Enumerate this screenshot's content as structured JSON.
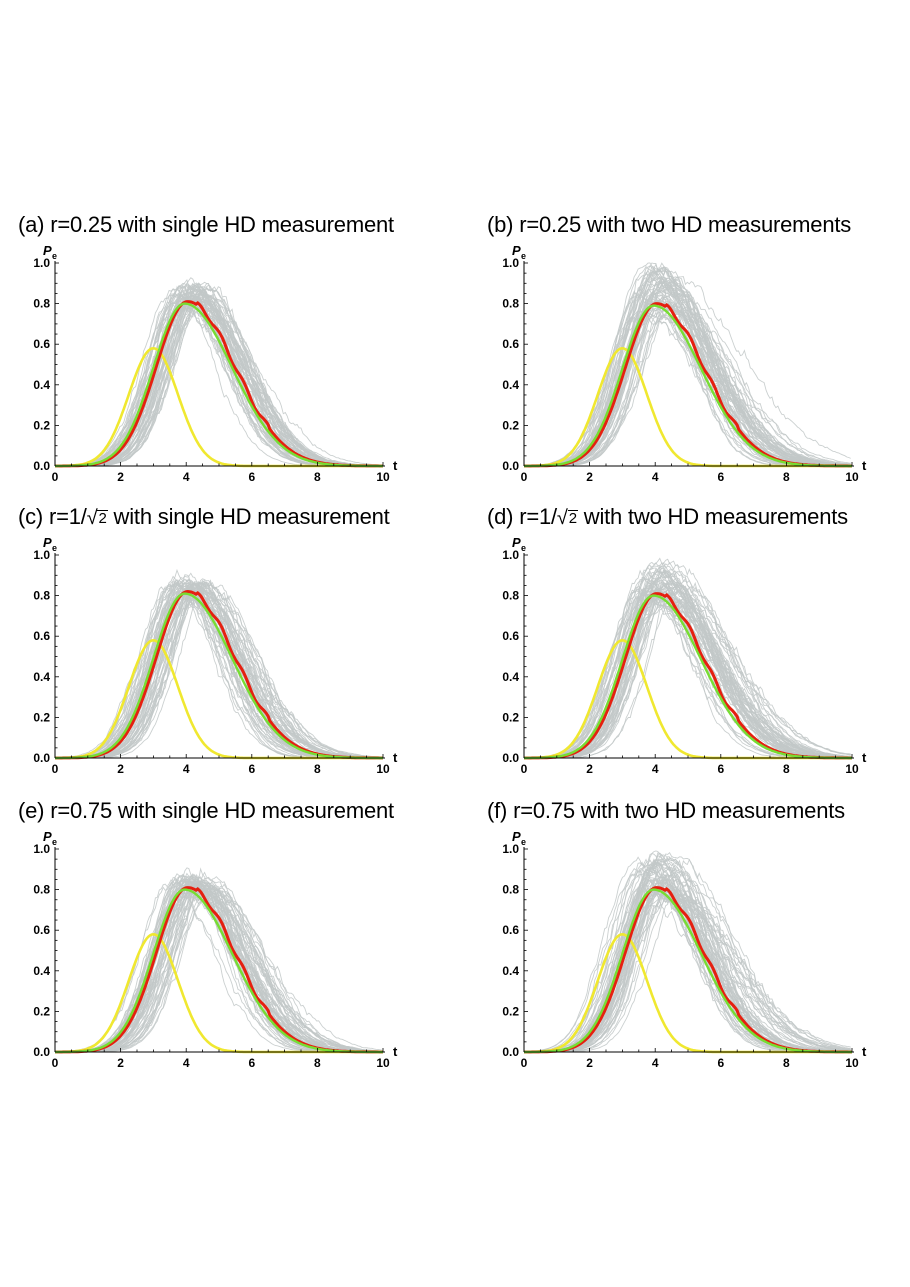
{
  "chart_data": [
    {
      "type": "line",
      "title_prefix": "(a) r=0.25 with single HD measurement",
      "title_r": "",
      "title_suffix": "",
      "xlabel": "t",
      "ylabel": "P",
      "ylabel_sub": "e",
      "xlim": [
        0,
        10
      ],
      "ylim": [
        0,
        1.0
      ],
      "xticks": [
        "0",
        "2",
        "4",
        "6",
        "8",
        "10"
      ],
      "yticks": [
        "0.0",
        "0.2",
        "0.4",
        "0.6",
        "0.8",
        "1.0"
      ],
      "mean_peak": {
        "t": 4.0,
        "P": 0.81
      },
      "envelope_peak": {
        "t": 3.0,
        "P": 0.58
      },
      "trajectory_max_P": 0.9,
      "trajectory_count": 60,
      "series": [
        {
          "name": "envelope",
          "color": "#f0e830"
        },
        {
          "name": "theory",
          "color": "#77dd33"
        },
        {
          "name": "average",
          "color": "#e52010"
        },
        {
          "name": "trajectories",
          "color": "#c2c8c8"
        }
      ]
    },
    {
      "type": "line",
      "title_prefix": "(b) r=0.25 with two HD measurements",
      "title_r": "",
      "title_suffix": "",
      "xlabel": "t",
      "ylabel": "P",
      "ylabel_sub": "e",
      "xlim": [
        0,
        10
      ],
      "ylim": [
        0,
        1.0
      ],
      "xticks": [
        "0",
        "2",
        "4",
        "6",
        "8",
        "10"
      ],
      "yticks": [
        "0.0",
        "0.2",
        "0.4",
        "0.6",
        "0.8",
        "1.0"
      ],
      "mean_peak": {
        "t": 4.0,
        "P": 0.8
      },
      "envelope_peak": {
        "t": 3.0,
        "P": 0.58
      },
      "trajectory_max_P": 1.0,
      "trajectory_count": 60,
      "series": [
        {
          "name": "envelope",
          "color": "#f0e830"
        },
        {
          "name": "theory",
          "color": "#77dd33"
        },
        {
          "name": "average",
          "color": "#e52010"
        },
        {
          "name": "trajectories",
          "color": "#c2c8c8"
        }
      ]
    },
    {
      "type": "line",
      "title_prefix": "(c) r=1/",
      "title_r": "2",
      "title_suffix": " with single HD measurement",
      "xlabel": "t",
      "ylabel": "P",
      "ylabel_sub": "e",
      "xlim": [
        0,
        10
      ],
      "ylim": [
        0,
        1.0
      ],
      "xticks": [
        "0",
        "2",
        "4",
        "6",
        "8",
        "10"
      ],
      "yticks": [
        "0.0",
        "0.2",
        "0.4",
        "0.6",
        "0.8",
        "1.0"
      ],
      "mean_peak": {
        "t": 4.0,
        "P": 0.82
      },
      "envelope_peak": {
        "t": 3.0,
        "P": 0.58
      },
      "trajectory_max_P": 0.88,
      "trajectory_count": 60,
      "series": [
        {
          "name": "envelope",
          "color": "#f0e830"
        },
        {
          "name": "theory",
          "color": "#77dd33"
        },
        {
          "name": "average",
          "color": "#e52010"
        },
        {
          "name": "trajectories",
          "color": "#c2c8c8"
        }
      ]
    },
    {
      "type": "line",
      "title_prefix": "(d) r=1/",
      "title_r": "2",
      "title_suffix": " with two HD measurements",
      "xlabel": "t",
      "ylabel": "P",
      "ylabel_sub": "e",
      "xlim": [
        0,
        10
      ],
      "ylim": [
        0,
        1.0
      ],
      "xticks": [
        "0",
        "2",
        "4",
        "6",
        "8",
        "10"
      ],
      "yticks": [
        "0.0",
        "0.2",
        "0.4",
        "0.6",
        "0.8",
        "1.0"
      ],
      "mean_peak": {
        "t": 4.0,
        "P": 0.81
      },
      "envelope_peak": {
        "t": 3.0,
        "P": 0.58
      },
      "trajectory_max_P": 0.98,
      "trajectory_count": 60,
      "series": [
        {
          "name": "envelope",
          "color": "#f0e830"
        },
        {
          "name": "theory",
          "color": "#77dd33"
        },
        {
          "name": "average",
          "color": "#e52010"
        },
        {
          "name": "trajectories",
          "color": "#c2c8c8"
        }
      ]
    },
    {
      "type": "line",
      "title_prefix": "(e) r=0.75 with single HD measurement",
      "title_r": "",
      "title_suffix": "",
      "xlabel": "t",
      "ylabel": "P",
      "ylabel_sub": "e",
      "xlim": [
        0,
        10
      ],
      "ylim": [
        0,
        1.0
      ],
      "xticks": [
        "0",
        "2",
        "4",
        "6",
        "8",
        "10"
      ],
      "yticks": [
        "0.0",
        "0.2",
        "0.4",
        "0.6",
        "0.8",
        "1.0"
      ],
      "mean_peak": {
        "t": 4.0,
        "P": 0.81
      },
      "envelope_peak": {
        "t": 3.0,
        "P": 0.58
      },
      "trajectory_max_P": 0.86,
      "trajectory_count": 60,
      "series": [
        {
          "name": "envelope",
          "color": "#f0e830"
        },
        {
          "name": "theory",
          "color": "#77dd33"
        },
        {
          "name": "average",
          "color": "#e52010"
        },
        {
          "name": "trajectories",
          "color": "#c2c8c8"
        }
      ]
    },
    {
      "type": "line",
      "title_prefix": "(f) r=0.75 with two HD measurements",
      "title_r": "",
      "title_suffix": "",
      "xlabel": "t",
      "ylabel": "P",
      "ylabel_sub": "e",
      "xlim": [
        0,
        10
      ],
      "ylim": [
        0,
        1.0
      ],
      "xticks": [
        "0",
        "2",
        "4",
        "6",
        "8",
        "10"
      ],
      "yticks": [
        "0.0",
        "0.2",
        "0.4",
        "0.6",
        "0.8",
        "1.0"
      ],
      "mean_peak": {
        "t": 4.0,
        "P": 0.81
      },
      "envelope_peak": {
        "t": 3.0,
        "P": 0.58
      },
      "trajectory_max_P": 1.0,
      "trajectory_count": 60,
      "series": [
        {
          "name": "envelope",
          "color": "#f0e830"
        },
        {
          "name": "theory",
          "color": "#77dd33"
        },
        {
          "name": "average",
          "color": "#e52010"
        },
        {
          "name": "trajectories",
          "color": "#c2c8c8"
        }
      ]
    }
  ]
}
